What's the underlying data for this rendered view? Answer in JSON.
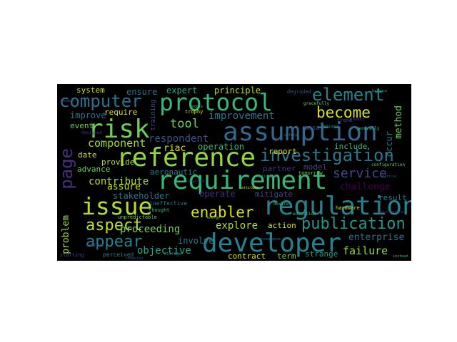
{
  "palette": {
    "background": "#000000",
    "purple": "#472f7d",
    "blue": "#31688e",
    "teal": "#26828e",
    "green": "#35b779",
    "yellowgreen": "#8fd744",
    "yellow": "#d8e219"
  },
  "words": {
    "assumption": "assumption",
    "requirement": "requirement",
    "reference": "reference",
    "regulation": "regulation",
    "developer": "developer",
    "protocol": "protocol",
    "investigation": "investigation",
    "issue": "issue",
    "risk": "risk",
    "computer": "computer",
    "element": "element",
    "publication": "publication",
    "enabler": "enabler",
    "appear": "appear",
    "aspect": "aspect",
    "become": "become",
    "service": "service",
    "page": "page",
    "component": "component",
    "improvement": "improvement",
    "respondent": "respondent",
    "tool": "tool",
    "proceeding": "proceeding",
    "contribute": "contribute",
    "objective": "objective",
    "failure": "failure",
    "explore": "explore",
    "challenge": "challenge",
    "enterprise": "enterprise",
    "operation": "operation",
    "expert": "expert",
    "principle": "principle",
    "system": "system",
    "ensure": "ensure",
    "require": "require",
    "improve": "improve",
    "event": "event",
    "date": "date",
    "provide": "provide",
    "advance": "advance",
    "assure": "assure",
    "stakeholder": "stakeholder",
    "aeronautic": "aeronautic",
    "riac": "riac",
    "partner": "partner",
    "model": "model",
    "operate": "operate",
    "mitigate": "mitigate",
    "involve": "involve",
    "action": "action",
    "contract": "contract",
    "term": "term",
    "strange": "strange",
    "report": "report",
    "include": "include",
    "result": "result",
    "method": "method",
    "occur": "occur",
    "problem": "problem",
    "nasa": "nasa",
    "trophy": "trophy",
    "training": "training",
    "tomorrow": "tomorrow",
    "degraded": "degraded",
    "ineffective": "ineffective",
    "unpredictable": "unpredictable",
    "perceived": "perceived",
    "starting": "starting",
    "designed": "designed",
    "thought": "thought",
    "hardware": "hardware",
    "configuration": "configuration",
    "trend": "trend",
    "device": "device",
    "education": "education",
    "storage": "storage",
    "neutral": "neutral",
    "gracefully": "gracefully",
    "generally": "generally",
    "attitude": "attitude",
    "student": "student",
    "reduce": "reduce",
    "influence": "influence",
    "balance": "balance",
    "selected": "selected",
    "intermediate": "intermediate",
    "consequence": "consequence",
    "cohesion": "cohesion",
    "reliable": "reliable",
    "product": "product",
    "safety": "safety",
    "instead": "instead",
    "energy": "energy",
    "critical": "critical"
  }
}
